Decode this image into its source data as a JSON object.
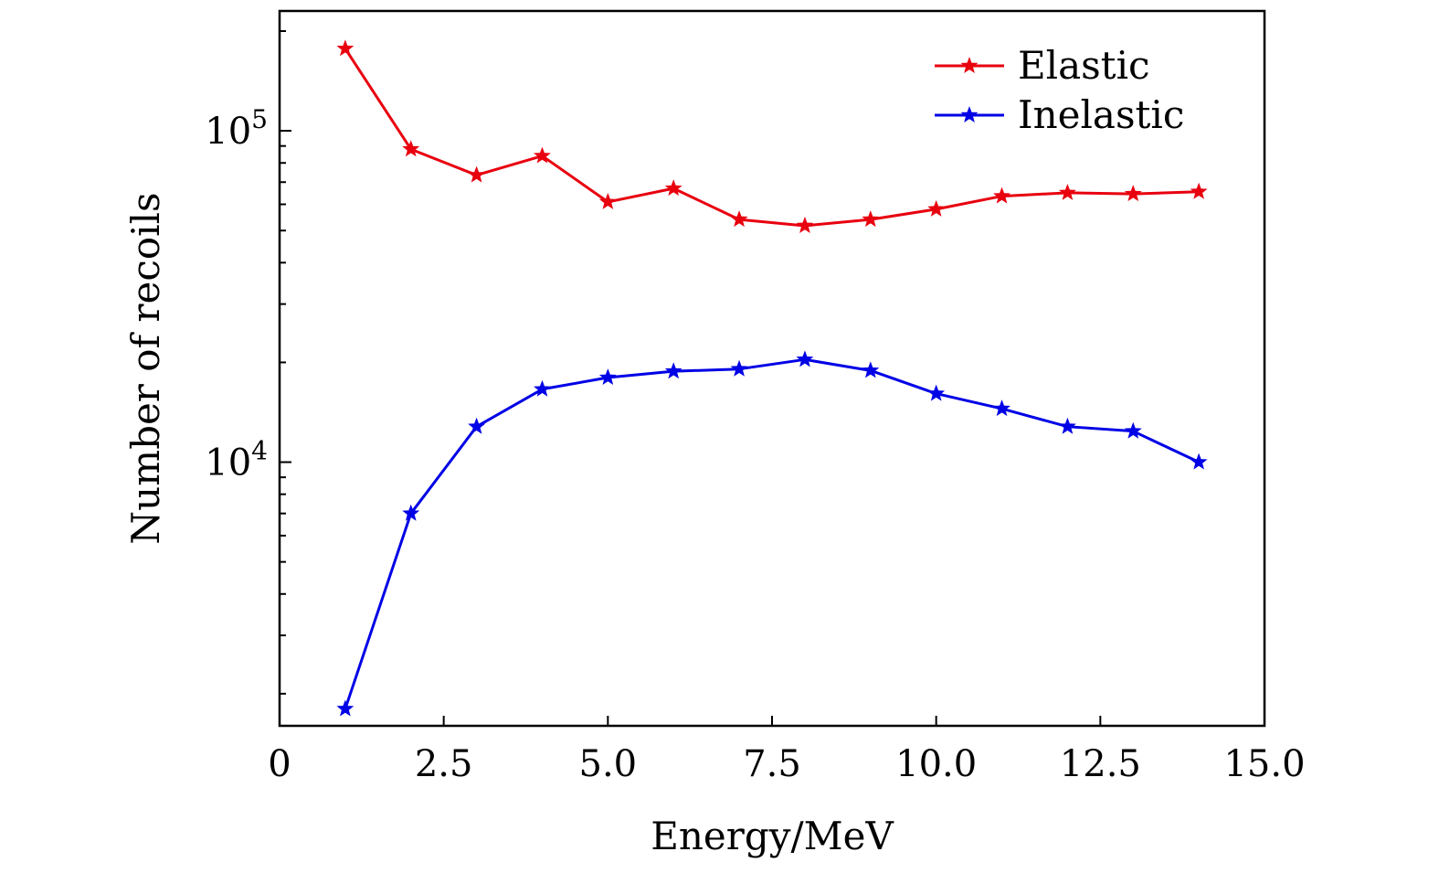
{
  "chart_data": {
    "type": "line",
    "title": "",
    "xlabel": "Energy/MeV",
    "ylabel": "Number of recoils",
    "xlim": [
      0,
      15
    ],
    "ylim": [
      1600,
      230000
    ],
    "yscale": "log",
    "xticks": [
      0,
      2.5,
      5.0,
      7.5,
      10.0,
      12.5,
      15.0
    ],
    "xtick_labels": [
      "0",
      "2.5",
      "5.0",
      "7.5",
      "10.0",
      "12.5",
      "15.0"
    ],
    "yticks_major": [
      {
        "value": 10000,
        "base": "10",
        "exp": "4"
      },
      {
        "value": 100000,
        "base": "10",
        "exp": "5"
      }
    ],
    "legend_position": "top-right",
    "series": [
      {
        "name": "Elastic",
        "color": "#e8000f",
        "marker": "star",
        "x": [
          1,
          2,
          3,
          4,
          5,
          6,
          7,
          8,
          9,
          10,
          11,
          12,
          13,
          14
        ],
        "values": [
          177000,
          88000,
          73500,
          84000,
          61000,
          67000,
          54000,
          51700,
          54000,
          58000,
          63500,
          65000,
          64500,
          65500
        ]
      },
      {
        "name": "Inelastic",
        "color": "#0000e6",
        "marker": "star",
        "x": [
          1,
          2,
          3,
          4,
          5,
          6,
          7,
          8,
          9,
          10,
          11,
          12,
          13,
          14
        ],
        "values": [
          1800,
          7000,
          12800,
          16600,
          18000,
          18800,
          19100,
          20400,
          18900,
          16100,
          14500,
          12800,
          12400,
          10000
        ]
      }
    ]
  }
}
